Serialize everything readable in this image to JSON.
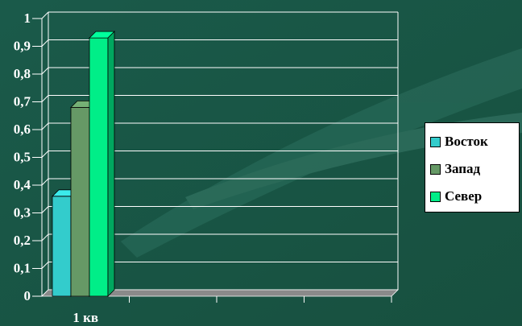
{
  "chart_data": {
    "type": "bar",
    "categories": [
      "1 кв"
    ],
    "series": [
      {
        "name": "Восток",
        "values": [
          0.36
        ],
        "color": "#33cccc"
      },
      {
        "name": "Запад",
        "values": [
          0.68
        ],
        "color": "#669966"
      },
      {
        "name": "Север",
        "values": [
          0.93
        ],
        "color": "#00ee88"
      }
    ],
    "y_ticks": [
      "0",
      "0,1",
      "0,2",
      "0,3",
      "0,4",
      "0,5",
      "0,6",
      "0,7",
      "0,8",
      "0,9",
      "1"
    ],
    "ylim": [
      0,
      1
    ],
    "grid": true,
    "legend_position": "right",
    "background_color": "#1e5f50",
    "gridline_color": "#ffffff"
  }
}
